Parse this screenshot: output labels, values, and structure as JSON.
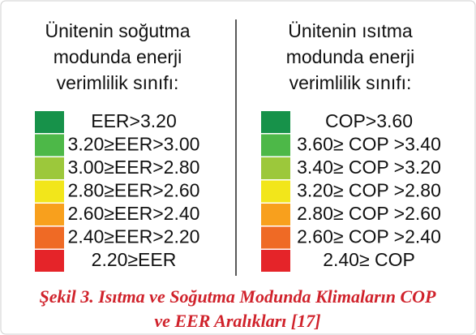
{
  "left": {
    "title_lines": [
      "Ünitenin soğutma",
      "modunda enerji",
      "verimlilik sınıfı:"
    ],
    "classes": [
      {
        "label": "EER>3.20",
        "color": "#17924a"
      },
      {
        "label": "3.20≥EER>3.00",
        "color": "#4db848"
      },
      {
        "label": "3.00≥EER>2.80",
        "color": "#9cc83b"
      },
      {
        "label": "2.80≥EER>2.60",
        "color": "#f2e61b"
      },
      {
        "label": "2.60≥EER>2.40",
        "color": "#f8a01d"
      },
      {
        "label": "2.40≥EER>2.20",
        "color": "#ef6a25"
      },
      {
        "label": "2.20≥EER",
        "color": "#e52429"
      }
    ]
  },
  "right": {
    "title_lines": [
      "Ünitenin ısıtma",
      "modunda enerji",
      "verimlilik sınıfı:"
    ],
    "classes": [
      {
        "label": "COP>3.60",
        "color": "#17924a"
      },
      {
        "label": "3.60≥ COP >3.40",
        "color": "#4db848"
      },
      {
        "label": "3.40≥ COP >3.20",
        "color": "#9cc83b"
      },
      {
        "label": "3.20≥ COP >2.80",
        "color": "#f2e61b"
      },
      {
        "label": "2.80≥ COP >2.60",
        "color": "#f8a01d"
      },
      {
        "label": "2.60≥ COP >2.40",
        "color": "#ef6a25"
      },
      {
        "label": "2.40≥ COP",
        "color": "#e52429"
      }
    ]
  },
  "caption": {
    "lines": [
      "Şekil 3. Isıtma ve Soğutma Modunda Klimaların COP",
      "ve EER Aralıkları [17]"
    ]
  }
}
